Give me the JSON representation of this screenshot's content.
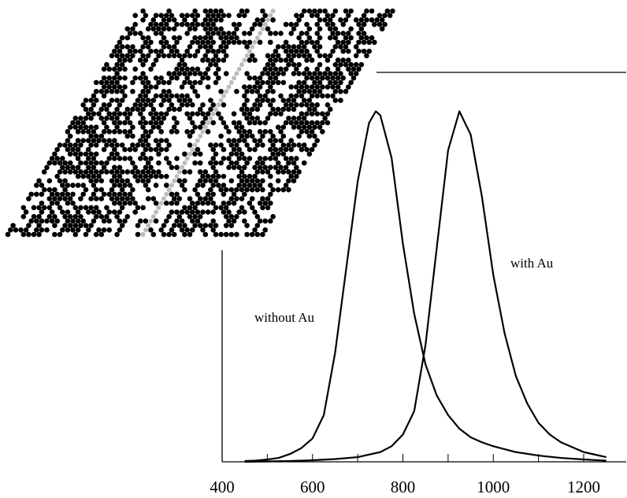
{
  "chart_data": {
    "type": "line",
    "xlim": [
      400,
      1295
    ],
    "ylim": [
      0,
      1
    ],
    "xticks": [
      400,
      600,
      800,
      1000,
      1200
    ],
    "xminor_ticks": [
      500,
      700,
      900,
      1100
    ],
    "series": [
      {
        "name": "without Au",
        "color": "#000000",
        "x": [
          450,
          475,
          500,
          525,
          550,
          575,
          600,
          625,
          650,
          675,
          700,
          725,
          740,
          750,
          775,
          800,
          825,
          850,
          875,
          900,
          925,
          950,
          975,
          1000,
          1050,
          1100,
          1150,
          1200,
          1250
        ],
        "values": [
          0.002,
          0.003,
          0.006,
          0.01,
          0.02,
          0.035,
          0.06,
          0.12,
          0.28,
          0.5,
          0.72,
          0.87,
          0.9,
          0.89,
          0.78,
          0.56,
          0.38,
          0.25,
          0.17,
          0.12,
          0.085,
          0.063,
          0.05,
          0.04,
          0.025,
          0.016,
          0.01,
          0.006,
          0.003
        ]
      },
      {
        "name": "with Au",
        "color": "#000000",
        "x": [
          450,
          500,
          550,
          600,
          650,
          700,
          750,
          775,
          800,
          825,
          850,
          875,
          900,
          925,
          950,
          975,
          1000,
          1025,
          1050,
          1075,
          1100,
          1125,
          1150,
          1200,
          1250
        ],
        "values": [
          0.0,
          0.001,
          0.002,
          0.004,
          0.007,
          0.012,
          0.025,
          0.04,
          0.07,
          0.13,
          0.3,
          0.55,
          0.8,
          0.9,
          0.84,
          0.68,
          0.48,
          0.33,
          0.22,
          0.15,
          0.1,
          0.07,
          0.05,
          0.025,
          0.012
        ]
      }
    ]
  }
}
